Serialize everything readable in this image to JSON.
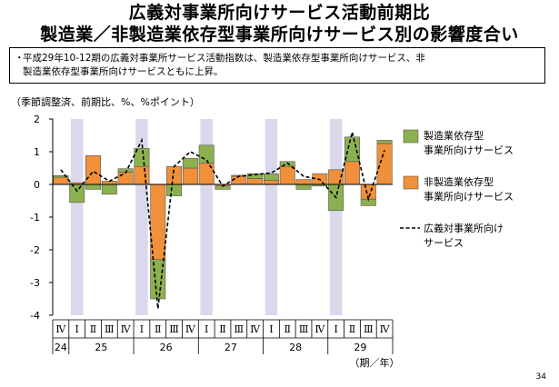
{
  "title_line1": "広義対事業所向けサービス活動前期比",
  "title_line2": "製造業／非製造業依存型事業所向けサービス別の影響度合い",
  "summary_bullet": "・",
  "summary_text_line1": "平成29年10-12期の広義対事業所サービス活動指数は、製造業依存型事業所向けサービス、非",
  "summary_text_line2": "製造業依存型事業所向けサービスともに上昇。",
  "unit_label": "（季節調整済、前期比、%、%ポイント）",
  "page_number": "34",
  "colors": {
    "manufacturing": "#8cb050",
    "non_manufacturing": "#f0903a",
    "band": "#dcd8ec",
    "line": "#000000"
  },
  "chart_data": {
    "type": "bar",
    "stacked": true,
    "ylim": [
      -4,
      2
    ],
    "yticks": [
      "2",
      "1",
      "0",
      "-1",
      "-2",
      "-3",
      "-4"
    ],
    "x_quarters": [
      "Ⅳ",
      "Ⅰ",
      "Ⅱ",
      "Ⅲ",
      "Ⅳ",
      "Ⅰ",
      "Ⅱ",
      "Ⅲ",
      "Ⅳ",
      "Ⅰ",
      "Ⅱ",
      "Ⅲ",
      "Ⅳ",
      "Ⅰ",
      "Ⅱ",
      "Ⅲ",
      "Ⅳ",
      "Ⅰ",
      "Ⅱ",
      "Ⅲ",
      "Ⅳ"
    ],
    "x_years": [
      {
        "label": "24",
        "start": 0,
        "count": 1
      },
      {
        "label": "25",
        "start": 1,
        "count": 4
      },
      {
        "label": "26",
        "start": 5,
        "count": 4
      },
      {
        "label": "27",
        "start": 9,
        "count": 4
      },
      {
        "label": "28",
        "start": 13,
        "count": 4
      },
      {
        "label": "29",
        "start": 17,
        "count": 4
      }
    ],
    "x_axis_unit": "（期／年）",
    "series": [
      {
        "name": "製造業依存型事業所向けサービス",
        "kind": "bar",
        "values": [
          0.05,
          -0.55,
          -0.15,
          -0.3,
          0.1,
          0.55,
          -1.2,
          -0.35,
          0.3,
          0.55,
          -0.1,
          0.03,
          0.15,
          0.2,
          0.15,
          -0.15,
          -0.05,
          -0.8,
          0.75,
          -0.2,
          0.1
        ]
      },
      {
        "name": "非製造業依存型事業所向けサービス",
        "kind": "bar",
        "values": [
          0.22,
          0.05,
          0.88,
          0.1,
          0.38,
          0.55,
          -2.3,
          0.55,
          0.5,
          0.65,
          -0.05,
          0.25,
          0.18,
          0.12,
          0.55,
          0.15,
          0.33,
          0.45,
          0.7,
          -0.45,
          1.25
        ]
      },
      {
        "name": "広義対事業所向けサービス",
        "kind": "line",
        "values": [
          0.45,
          -0.2,
          0.4,
          0.1,
          0.35,
          1.35,
          -3.8,
          0.55,
          1.0,
          0.75,
          -0.05,
          0.25,
          0.3,
          0.35,
          0.65,
          0.25,
          0.15,
          -0.4,
          1.6,
          -0.45,
          1.05
        ]
      }
    ],
    "legend": {
      "placement": "right",
      "items": [
        {
          "line1": "製造業依存型",
          "line2": "事業所向けサービス"
        },
        {
          "line1": "非製造業依存型",
          "line2": "事業所向けサービス"
        },
        {
          "line1": "広義対事業所向け",
          "line2": "サービス"
        }
      ]
    }
  }
}
